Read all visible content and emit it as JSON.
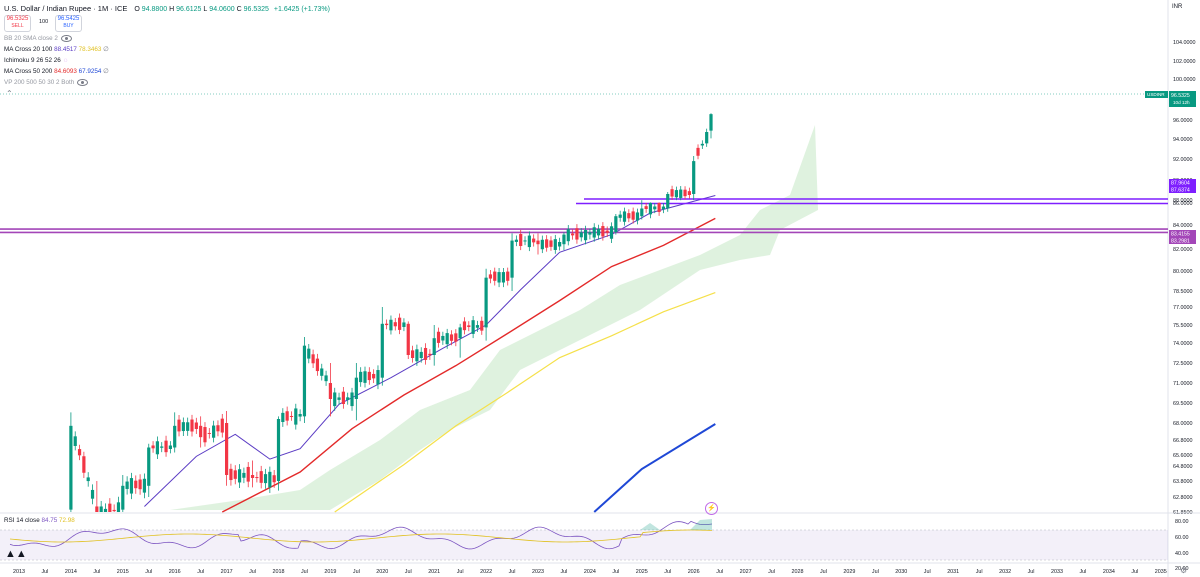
{
  "header": {
    "symbol_title": "U.S. Dollar / Indian Rupee · 1M · ICE",
    "ohlc": [
      {
        "label": "O",
        "value": "94.8800"
      },
      {
        "label": "H",
        "value": "96.6125"
      },
      {
        "label": "L",
        "value": "94.0600"
      },
      {
        "label": "C",
        "value": "96.5325"
      }
    ],
    "change": "+1.6425 (+1.73%)",
    "sell_price": "96.5325",
    "sell_label": "SELL",
    "spread": "100",
    "buy_price": "96.5425",
    "buy_label": "BUY"
  },
  "indicators": [
    {
      "name": "BB 20 SMA close 2",
      "values": []
    },
    {
      "name": "MA Cross 20 100",
      "values": [
        "88.4517",
        "78.3463"
      ]
    },
    {
      "name": "Ichimoku 9 26 52 26",
      "values": []
    },
    {
      "name": "MA Cross 50 200",
      "values": [
        "84.6093",
        "67.9254"
      ]
    },
    {
      "name": "VP 200 500 50 30 2 Both",
      "values": []
    }
  ],
  "rsi": {
    "label": "RSI 14 close",
    "value": "84.75",
    "signal": "72.98"
  },
  "currency": "INR",
  "price_tags": [
    {
      "text": "USDINR",
      "value": "96.5325",
      "sub": "10d 12h",
      "color": "#089981"
    },
    {
      "text": "87.9604",
      "color": "#7e1fff"
    },
    {
      "text": "87.6374",
      "color": "#7e1fff"
    },
    {
      "text": "83.4155",
      "color": "#a346b8"
    },
    {
      "text": "83.2981",
      "color": "#a346b8"
    }
  ],
  "colors": {
    "up": "#089981",
    "down": "#f23645",
    "ma20": "#5b3cc4",
    "ma100": "#e32a2a",
    "ma50": "#f5e04a",
    "ma200": "#1f48d6",
    "cloud": "#b9e3b7",
    "hline1": "#7e1fff",
    "hline2": "#a346b8"
  },
  "chart_data": {
    "type": "candlestick",
    "y_axis_ticks": [
      "104.0000",
      "102.0000",
      "100.0000",
      "98.0000",
      "96.0000",
      "94.0000",
      "92.0000",
      "90.0000",
      "88.0000",
      "86.0000",
      "84.0000",
      "82.0000",
      "80.0000",
      "78.5000",
      "77.0000",
      "75.5000",
      "74.0000",
      "72.5000",
      "71.0000",
      "69.5000",
      "68.0000",
      "66.8000",
      "65.6000",
      "64.8000",
      "63.8000",
      "62.8000",
      "61.8500"
    ],
    "x_axis_labels": [
      "2013",
      "Jul",
      "2014",
      "Jul",
      "2015",
      "Jul",
      "2016",
      "Jul",
      "2017",
      "Jul",
      "2018",
      "Jul",
      "2019",
      "Jul",
      "2020",
      "Jul",
      "2021",
      "Jul",
      "2022",
      "Jul",
      "2023",
      "Jul",
      "2024",
      "Jul",
      "2025",
      "Jul",
      "2026",
      "Jul",
      "2027",
      "Jul",
      "2028",
      "Jul",
      "2029",
      "Jul",
      "2030",
      "Jul",
      "2031",
      "Jul",
      "2032",
      "Jul",
      "2033",
      "Jul",
      "2034",
      "Jul",
      "2035"
    ],
    "rsi_ticks": [
      "80.00",
      "60.00",
      "40.00",
      "20.00"
    ],
    "horizontal_lines": [
      87.9604,
      87.6374,
      83.4155,
      83.2981
    ],
    "candles": [
      {
        "date": "2014-01",
        "o": 62.0,
        "h": 68.8,
        "l": 61.5,
        "c": 67.8
      },
      {
        "date": "2014-07",
        "o": 62.2,
        "h": 63.8,
        "l": 60.5,
        "c": 61.7
      },
      {
        "date": "2015-01",
        "o": 62.0,
        "h": 64.2,
        "l": 61.5,
        "c": 63.5
      },
      {
        "date": "2015-07",
        "o": 63.5,
        "h": 66.5,
        "l": 62.8,
        "c": 66.2
      },
      {
        "date": "2016-01",
        "o": 66.2,
        "h": 68.8,
        "l": 65.8,
        "c": 67.8
      },
      {
        "date": "2016-07",
        "o": 67.8,
        "h": 68.5,
        "l": 66.2,
        "c": 67.0
      },
      {
        "date": "2017-01",
        "o": 68.0,
        "h": 68.9,
        "l": 63.5,
        "c": 64.2
      },
      {
        "date": "2017-07",
        "o": 64.2,
        "h": 65.2,
        "l": 63.4,
        "c": 64.0
      },
      {
        "date": "2018-01",
        "o": 63.8,
        "h": 68.5,
        "l": 63.2,
        "c": 68.3
      },
      {
        "date": "2018-07",
        "o": 68.5,
        "h": 74.5,
        "l": 68.0,
        "c": 73.8
      },
      {
        "date": "2019-01",
        "o": 71.0,
        "h": 72.5,
        "l": 68.5,
        "c": 69.8
      },
      {
        "date": "2019-07",
        "o": 69.8,
        "h": 72.5,
        "l": 68.2,
        "c": 71.4
      },
      {
        "date": "2020-01",
        "o": 71.4,
        "h": 77.0,
        "l": 70.8,
        "c": 75.6
      },
      {
        "date": "2020-07",
        "o": 75.6,
        "h": 75.8,
        "l": 72.8,
        "c": 73.1
      },
      {
        "date": "2021-01",
        "o": 73.1,
        "h": 75.5,
        "l": 72.3,
        "c": 74.4
      },
      {
        "date": "2021-07",
        "o": 74.4,
        "h": 75.6,
        "l": 72.9,
        "c": 75.3
      },
      {
        "date": "2022-01",
        "o": 75.3,
        "h": 80.2,
        "l": 74.2,
        "c": 79.5
      },
      {
        "date": "2022-07",
        "o": 79.5,
        "h": 83.3,
        "l": 78.5,
        "c": 82.7
      },
      {
        "date": "2023-01",
        "o": 82.7,
        "h": 83.3,
        "l": 81.5,
        "c": 82.4
      },
      {
        "date": "2023-07",
        "o": 82.4,
        "h": 83.4,
        "l": 81.9,
        "c": 83.2
      },
      {
        "date": "2024-01",
        "o": 83.2,
        "h": 83.7,
        "l": 82.8,
        "c": 83.4
      },
      {
        "date": "2024-07",
        "o": 83.4,
        "h": 85.0,
        "l": 83.2,
        "c": 84.8
      },
      {
        "date": "2025-01",
        "o": 84.8,
        "h": 87.9,
        "l": 84.5,
        "c": 85.5
      },
      {
        "date": "2025-07",
        "o": 85.5,
        "h": 88.8,
        "l": 85.2,
        "c": 88.6
      },
      {
        "date": "2026-01",
        "o": 88.6,
        "h": 92.3,
        "l": 88.0,
        "c": 91.8
      },
      {
        "date": "2026-05",
        "o": 94.88,
        "h": 96.6125,
        "l": 94.06,
        "c": 96.5325
      }
    ]
  }
}
